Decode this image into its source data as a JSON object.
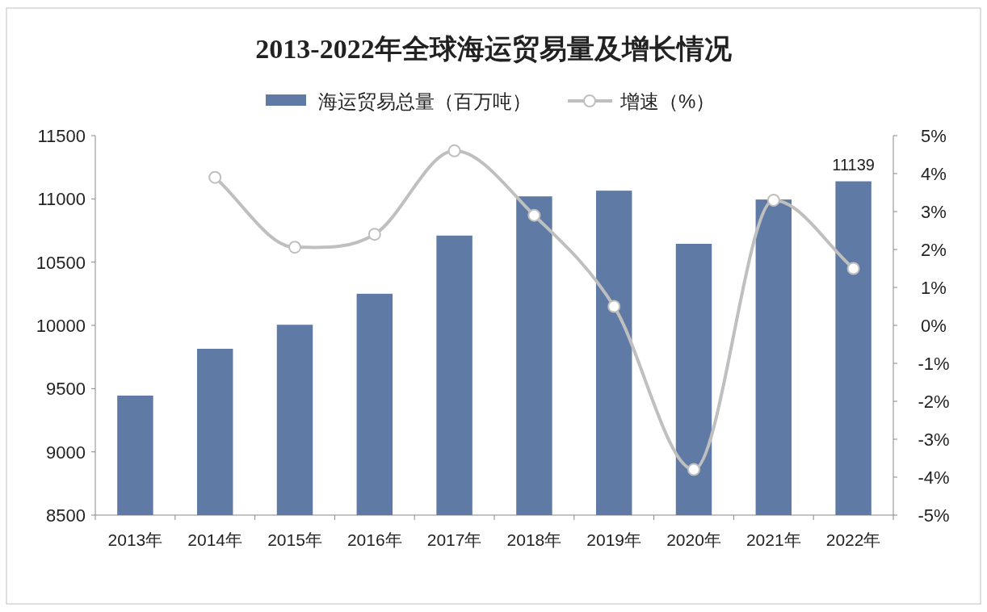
{
  "chart_data": {
    "type": "bar",
    "title": "2013-2022年全球海运贸易量及增长情况",
    "categories": [
      "2013年",
      "2014年",
      "2015年",
      "2016年",
      "2017年",
      "2018年",
      "2019年",
      "2020年",
      "2021年",
      "2022年"
    ],
    "series": [
      {
        "name": "海运贸易总量（百万吨）",
        "color": "#5f7aa5",
        "values": [
          9445,
          9815,
          10005,
          10250,
          10710,
          11020,
          11065,
          10645,
          10995,
          11139
        ],
        "value_labels": [
          null,
          null,
          null,
          null,
          null,
          null,
          null,
          null,
          null,
          "11139"
        ]
      },
      {
        "name": "增速（%）",
        "type": "line",
        "axis": "y2",
        "color": "#bfbfbf",
        "marker": "circle",
        "values": [
          null,
          3.9,
          2.06,
          2.4,
          4.6,
          2.9,
          0.5,
          -3.8,
          3.3,
          1.5
        ]
      }
    ],
    "ylim": [
      8500,
      11500
    ],
    "yticks": [
      8500,
      9000,
      9500,
      10000,
      10500,
      11000,
      11500
    ],
    "y2lim": [
      -5,
      5
    ],
    "y2ticks": [
      {
        "value": -5,
        "label": "-5%"
      },
      {
        "value": -4,
        "label": "-4%"
      },
      {
        "value": -3,
        "label": "-3%"
      },
      {
        "value": -2,
        "label": "-2%"
      },
      {
        "value": -1,
        "label": "-1%"
      },
      {
        "value": 0,
        "label": "0%"
      },
      {
        "value": 1,
        "label": "1%"
      },
      {
        "value": 2,
        "label": "2%"
      },
      {
        "value": 3,
        "label": "3%"
      },
      {
        "value": 4,
        "label": "4%"
      },
      {
        "value": 5,
        "label": "5%"
      }
    ],
    "legend": "top"
  }
}
